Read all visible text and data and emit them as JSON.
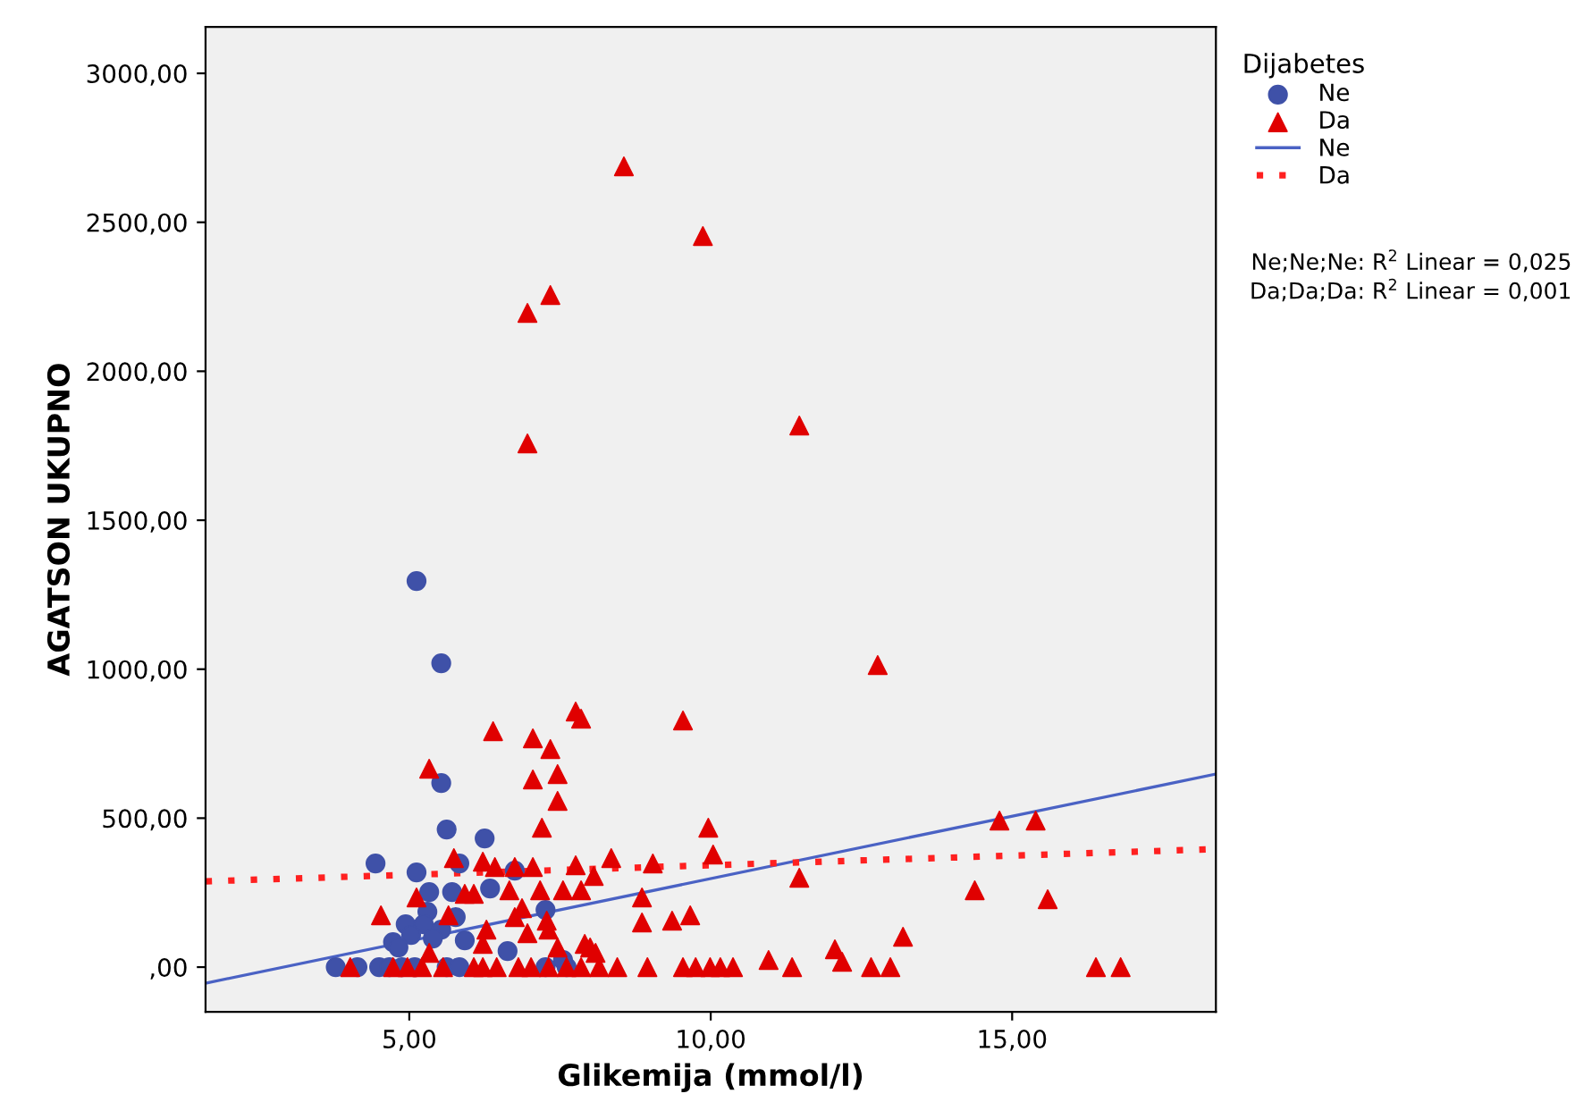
{
  "chart_data": {
    "type": "scatter",
    "xlabel": "Glikemija (mmol/l)",
    "ylabel": "AGATSON UKUPNO",
    "legend_title": "Dijabetes",
    "legend": "right",
    "grid": false,
    "xlim": [
      1.62,
      18.38
    ],
    "xticks": [
      {
        "value": 5,
        "label": "5,00"
      },
      {
        "value": 10,
        "label": "10,00"
      },
      {
        "value": 15,
        "label": "15,00"
      }
    ],
    "ylim": [
      -150,
      3156
    ],
    "yticks": [
      {
        "value": 0,
        "label": ",00"
      },
      {
        "value": 500,
        "label": "500,00"
      },
      {
        "value": 1000,
        "label": "1000,00"
      },
      {
        "value": 1500,
        "label": "1500,00"
      },
      {
        "value": 2000,
        "label": "2000,00"
      },
      {
        "value": 2500,
        "label": "2500,00"
      },
      {
        "value": 3000,
        "label": "3000,00"
      }
    ],
    "annotations": [
      "Ne;Ne;Ne: R$^{2}$ Linear = 0,025",
      "Da;Da;Da: R$^{2}$ Linear = 0,001"
    ],
    "series": [
      {
        "name": "Ne",
        "marker": "circle",
        "color": "#3f51a8",
        "x": [
          5.12,
          5.53,
          5.53,
          5.62,
          6.25,
          4.44,
          5.12,
          5.83,
          6.75,
          5.33,
          5.71,
          6.34,
          5.3,
          7.26,
          4.94,
          5.24,
          5.53,
          5.77,
          4.73,
          5.03,
          5.39,
          5.92,
          4.82,
          6.63,
          3.78,
          4.14,
          4.5,
          4.67,
          4.88,
          5.09,
          5.62,
          5.83,
          7.26,
          7.61,
          7.55
        ],
        "values": [
          1296,
          1020,
          618,
          462,
          432,
          348,
          318,
          348,
          324,
          252,
          252,
          264,
          186,
          192,
          144,
          144,
          126,
          168,
          84,
          108,
          96,
          90,
          66,
          54,
          0,
          0,
          0,
          0,
          0,
          0,
          0,
          0,
          0,
          0,
          24
        ]
      },
      {
        "name": "Da",
        "marker": "triangle",
        "color": "#e00000",
        "x": [
          8.56,
          9.87,
          7.34,
          6.96,
          6.96,
          11.47,
          12.77,
          7.76,
          7.85,
          6.39,
          7.05,
          7.34,
          5.33,
          7.05,
          7.46,
          7.46,
          7.2,
          5.74,
          6.22,
          6.42,
          6.75,
          7.05,
          7.76,
          8.35,
          9.04,
          8.06,
          5.92,
          6.07,
          6.66,
          7.17,
          7.55,
          7.85,
          5.12,
          5.65,
          6.87,
          8.86,
          4.53,
          6.75,
          7.28,
          8.86,
          6.28,
          6.96,
          7.31,
          7.91,
          8.0,
          6.22,
          7.46,
          5.33,
          8.09,
          9.54,
          9.96,
          10.04,
          11.47,
          14.79,
          15.39,
          14.38,
          15.59,
          9.36,
          9.66,
          13.19,
          12.06,
          12.18,
          10.96,
          4.02,
          4.73,
          4.97,
          5.21,
          5.56,
          6.07,
          6.22,
          6.45,
          6.81,
          7.02,
          7.31,
          7.61,
          7.85,
          8.15,
          8.45,
          8.95,
          9.54,
          9.75,
          9.99,
          10.16,
          10.37,
          11.35,
          12.66,
          12.98,
          16.39,
          16.8
        ],
        "values": [
          2688,
          2454,
          2256,
          2196,
          1758,
          1818,
          1014,
          858,
          834,
          792,
          768,
          732,
          666,
          630,
          648,
          558,
          468,
          366,
          354,
          336,
          336,
          336,
          342,
          366,
          348,
          306,
          246,
          246,
          258,
          258,
          258,
          258,
          234,
          174,
          198,
          234,
          174,
          168,
          156,
          150,
          126,
          114,
          126,
          78,
          66,
          78,
          66,
          48,
          48,
          828,
          468,
          378,
          300,
          492,
          492,
          258,
          228,
          156,
          174,
          102,
          60,
          18,
          24,
          0,
          0,
          0,
          0,
          0,
          0,
          0,
          0,
          0,
          0,
          0,
          0,
          0,
          0,
          0,
          0,
          0,
          0,
          0,
          0,
          0,
          0,
          0,
          0,
          0,
          0
        ]
      },
      {
        "name": "Ne",
        "type": "line",
        "line_style": "solid",
        "color": "#4a62c4",
        "x": [
          1.62,
          18.38
        ],
        "values": [
          -54,
          648
        ]
      },
      {
        "name": "Da",
        "type": "line",
        "line_style": "dotted",
        "color": "#ff2020",
        "x": [
          1.62,
          18.38
        ],
        "values": [
          288,
          396
        ]
      }
    ]
  }
}
